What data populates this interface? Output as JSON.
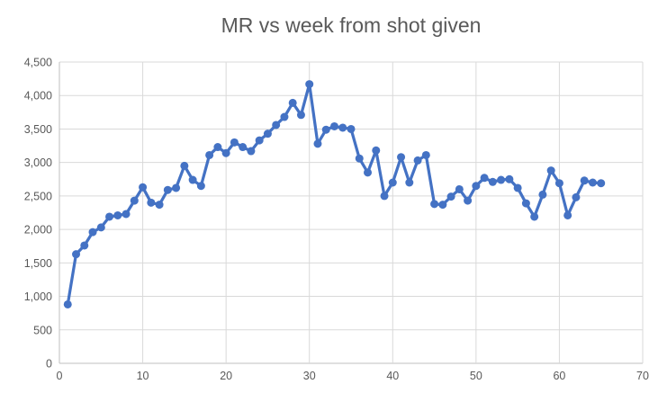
{
  "title": "MR vs week from shot given",
  "chart_data": {
    "type": "line",
    "title": "MR vs week from shot given",
    "xlabel": "",
    "ylabel": "",
    "xlim": [
      0,
      70
    ],
    "ylim": [
      0,
      4500
    ],
    "grid": true,
    "legend_position": "none",
    "x_ticks": [
      {
        "label": "0",
        "value": 0
      },
      {
        "label": "10",
        "value": 10
      },
      {
        "label": "20",
        "value": 20
      },
      {
        "label": "30",
        "value": 30
      },
      {
        "label": "40",
        "value": 40
      },
      {
        "label": "50",
        "value": 50
      },
      {
        "label": "60",
        "value": 60
      },
      {
        "label": "70",
        "value": 70
      }
    ],
    "y_ticks": [
      {
        "label": "0",
        "value": 0
      },
      {
        "label": "500",
        "value": 500
      },
      {
        "label": "1,000",
        "value": 1000
      },
      {
        "label": "1,500",
        "value": 1500
      },
      {
        "label": "2,000",
        "value": 2000
      },
      {
        "label": "2,500",
        "value": 2500
      },
      {
        "label": "3,000",
        "value": 3000
      },
      {
        "label": "3,500",
        "value": 3500
      },
      {
        "label": "4,000",
        "value": 4000
      },
      {
        "label": "4,500",
        "value": 4500
      }
    ],
    "series": [
      {
        "name": "MR",
        "marker": "circle",
        "x": [
          1,
          2,
          3,
          4,
          5,
          6,
          7,
          8,
          9,
          10,
          11,
          12,
          13,
          14,
          15,
          16,
          17,
          18,
          19,
          20,
          21,
          22,
          23,
          24,
          25,
          26,
          27,
          28,
          29,
          30,
          31,
          32,
          33,
          34,
          35,
          36,
          37,
          38,
          39,
          40,
          41,
          42,
          43,
          44,
          45,
          46,
          47,
          48,
          49,
          50,
          51,
          52,
          53,
          54,
          55,
          56,
          57,
          58,
          59,
          60,
          61,
          62,
          63,
          64,
          65
        ],
        "values": [
          880,
          1630,
          1760,
          1960,
          2030,
          2190,
          2210,
          2230,
          2430,
          2630,
          2400,
          2370,
          2590,
          2620,
          2950,
          2740,
          2650,
          3110,
          3230,
          3140,
          3300,
          3230,
          3170,
          3330,
          3430,
          3560,
          3680,
          3890,
          3710,
          4170,
          3280,
          3490,
          3540,
          3520,
          3500,
          3060,
          2850,
          3180,
          2500,
          2700,
          3080,
          2700,
          3030,
          3110,
          2380,
          2370,
          2490,
          2600,
          2430,
          2650,
          2770,
          2710,
          2740,
          2750,
          2620,
          2390,
          2190,
          2520,
          2880,
          2690,
          2210,
          2480,
          2730,
          2700,
          2690
        ]
      }
    ],
    "colors": {
      "line": "#4472C4",
      "marker": "#4472C4",
      "gridline": "#D9D9D9",
      "axis_line": "#BFBFBF",
      "text": "#595959",
      "background": "#FFFFFF"
    }
  }
}
